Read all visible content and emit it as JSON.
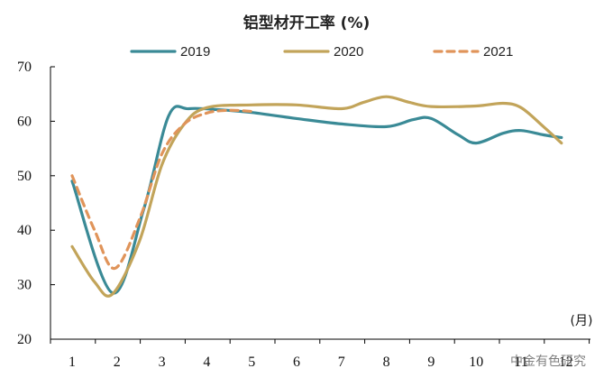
{
  "chart_data": {
    "type": "line",
    "title": "铝型材开工率 (%)",
    "x_unit_label": "(月)",
    "categories": [
      "1",
      "2",
      "3",
      "4",
      "5",
      "6",
      "7",
      "8",
      "9",
      "10",
      "11",
      "12"
    ],
    "ylim": [
      20,
      70
    ],
    "yticks": [
      20,
      30,
      40,
      50,
      60,
      70
    ],
    "legend_position": "top",
    "grid": false,
    "series": [
      {
        "name": "2019",
        "color": "#3a8a96",
        "dash": "solid",
        "points": [
          [
            1,
            49
          ],
          [
            1.9,
            28.5
          ],
          [
            2.6,
            44
          ],
          [
            3.15,
            61
          ],
          [
            3.6,
            62.3
          ],
          [
            4.3,
            62.1
          ],
          [
            5,
            61.6
          ],
          [
            6,
            60.5
          ],
          [
            7,
            59.5
          ],
          [
            8,
            59
          ],
          [
            8.6,
            60.3
          ],
          [
            9,
            60.5
          ],
          [
            9.6,
            57.5
          ],
          [
            10,
            56
          ],
          [
            10.6,
            57.8
          ],
          [
            11,
            58.3
          ],
          [
            11.5,
            57.5
          ],
          [
            11.9,
            57
          ]
        ]
      },
      {
        "name": "2020",
        "color": "#c2a45a",
        "dash": "solid",
        "points": [
          [
            1,
            37
          ],
          [
            1.5,
            30.5
          ],
          [
            1.9,
            28.3
          ],
          [
            2.5,
            38
          ],
          [
            3,
            52
          ],
          [
            3.5,
            59.5
          ],
          [
            4,
            62.5
          ],
          [
            5,
            63
          ],
          [
            6,
            63
          ],
          [
            7,
            62.3
          ],
          [
            7.5,
            63.5
          ],
          [
            8,
            64.5
          ],
          [
            8.5,
            63.5
          ],
          [
            9,
            62.7
          ],
          [
            10,
            62.8
          ],
          [
            10.6,
            63.3
          ],
          [
            11,
            62.5
          ],
          [
            11.5,
            59
          ],
          [
            11.9,
            56
          ]
        ]
      },
      {
        "name": "2021",
        "color": "#e0945a",
        "dash": "dashed",
        "points": [
          [
            1,
            50
          ],
          [
            1.5,
            40
          ],
          [
            1.95,
            33
          ],
          [
            2.5,
            42
          ],
          [
            3,
            54
          ],
          [
            3.5,
            59.5
          ],
          [
            4,
            61.5
          ],
          [
            4.5,
            62
          ],
          [
            5,
            61.8
          ]
        ]
      }
    ]
  },
  "watermark": "中金有色研究"
}
